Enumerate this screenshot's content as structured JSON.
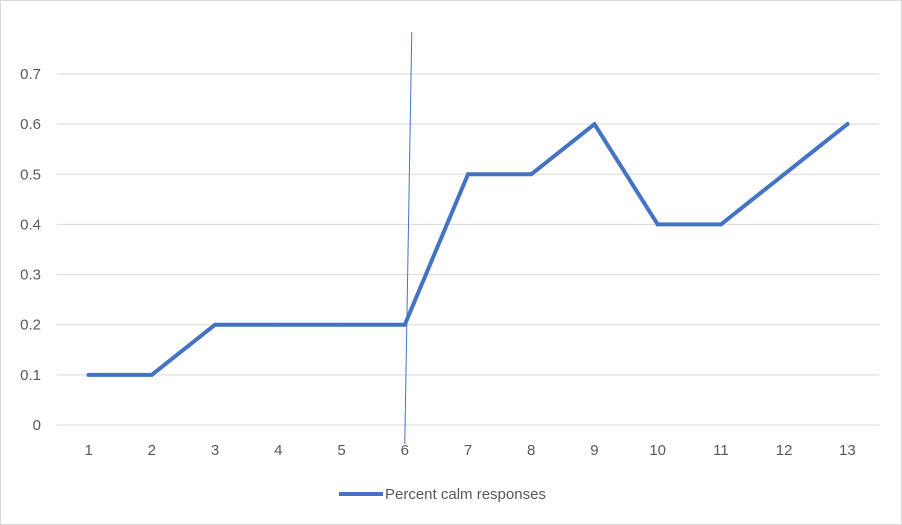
{
  "chart_data": {
    "type": "line",
    "title": "",
    "xlabel": "",
    "ylabel": "",
    "x": [
      "1",
      "2",
      "3",
      "4",
      "5",
      "6",
      "7",
      "8",
      "9",
      "10",
      "11",
      "12",
      "13"
    ],
    "series": [
      {
        "name": "Percent calm responses",
        "values": [
          0.1,
          0.1,
          0.2,
          0.2,
          0.2,
          0.2,
          0.5,
          0.5,
          0.6,
          0.4,
          0.4,
          0.5,
          0.6
        ],
        "color": "#4472c4"
      }
    ],
    "y_ticks": [
      "0",
      "0.1",
      "0.2",
      "0.3",
      "0.4",
      "0.5",
      "0.6",
      "0.7"
    ],
    "ylim": [
      0,
      0.7
    ],
    "grid": true,
    "legend_position": "bottom",
    "annotation": {
      "type": "vertical-line",
      "x": "6",
      "color": "#4472c4"
    }
  }
}
